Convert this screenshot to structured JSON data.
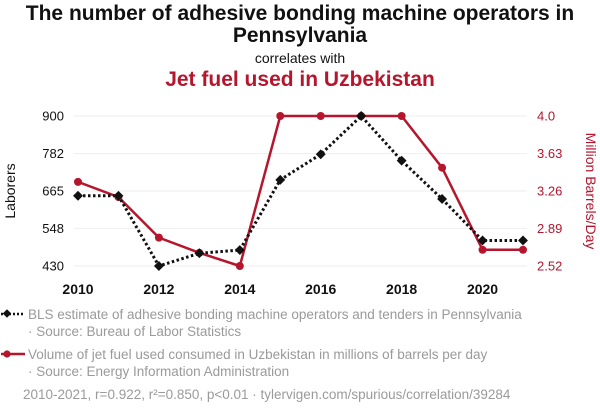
{
  "header": {
    "title": "The number of adhesive bonding machine operators in Pennsylvania",
    "correlates": "correlates with",
    "subtitle": "Jet fuel used in Uzbekistan"
  },
  "colors": {
    "series1": "#111111",
    "series2": "#b5162d"
  },
  "chart_data": {
    "type": "line",
    "x": [
      2010,
      2011,
      2012,
      2013,
      2014,
      2015,
      2016,
      2017,
      2018,
      2019,
      2020,
      2021
    ],
    "x_ticks": [
      "2010",
      "2012",
      "2014",
      "2016",
      "2018",
      "2020"
    ],
    "series": [
      {
        "name": "Laborers",
        "axis": "left",
        "values": [
          650,
          650,
          430,
          470,
          480,
          700,
          780,
          900,
          760,
          640,
          510,
          510
        ]
      },
      {
        "name": "Million Barrels/Day",
        "axis": "right",
        "values": [
          3.35,
          3.2,
          2.8,
          2.65,
          2.52,
          4.0,
          4.0,
          4.0,
          4.0,
          3.49,
          2.68,
          2.68
        ]
      }
    ],
    "y_left": {
      "label": "Laborers",
      "range": [
        430,
        900
      ],
      "ticks": [
        "430",
        "548",
        "665",
        "782",
        "900"
      ]
    },
    "y_right": {
      "label": "Million Barrels/Day",
      "range": [
        2.52,
        4.0
      ],
      "ticks": [
        "2.52",
        "2.89",
        "3.26",
        "3.63",
        "4.0"
      ]
    }
  },
  "legend": {
    "series1_text": "BLS estimate of adhesive bonding machine operators and tenders in Pennsylvania",
    "series1_source": "· Source: Bureau of Labor Statistics",
    "series2_text": "Volume of jet fuel used consumed in Uzbekistan in millions of barrels per day",
    "series2_source": "· Source: Energy Information Administration"
  },
  "footer": "2010-2021, r=0.922, r²=0.850, p<0.01 · tylervigen.com/spurious/correlation/39284"
}
